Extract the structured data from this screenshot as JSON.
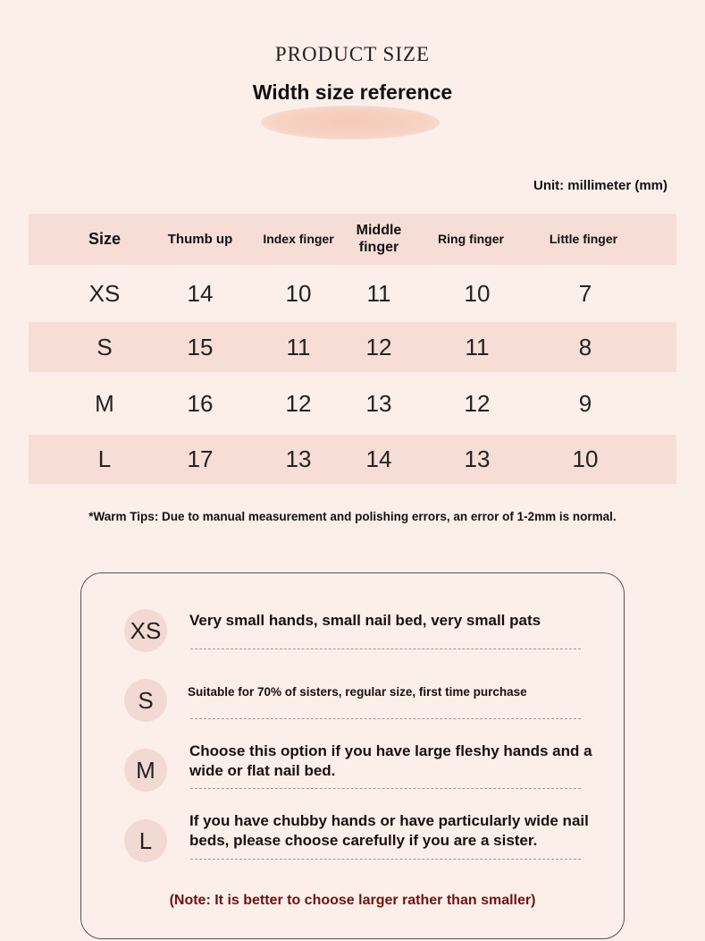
{
  "title": "PRODUCT SIZE",
  "subtitle": "Width size reference",
  "unit": "Unit: millimeter (mm)",
  "table": {
    "headers": [
      "Size",
      "Thumb up",
      "Index finger",
      "Middle finger",
      "Ring finger",
      "Little finger"
    ],
    "rows": [
      [
        "XS",
        "14",
        "10",
        "11",
        "10",
        "7"
      ],
      [
        "S",
        "15",
        "11",
        "12",
        "11",
        "8"
      ],
      [
        "M",
        "16",
        "12",
        "13",
        "12",
        "9"
      ],
      [
        "L",
        "17",
        "13",
        "14",
        "13",
        "10"
      ]
    ]
  },
  "tips": "*Warm Tips: Due to manual measurement and polishing errors, an error of 1-2mm is normal.",
  "guide": [
    {
      "size": "XS",
      "text": "Very small hands, small nail bed, very small pats"
    },
    {
      "size": "S",
      "text": "Suitable for 70% of sisters, regular size, first time purchase"
    },
    {
      "size": "M",
      "text": "Choose this option if you have large fleshy hands and a wide or flat nail bed."
    },
    {
      "size": "L",
      "text": "If you have chubby hands or have particularly wide nail beds, please choose carefully if you are a sister."
    }
  ],
  "note": "(Note: It is better to choose larger rather than smaller)",
  "colors": {
    "background": "#fcefea",
    "stripe": "#f6ddd5",
    "circle": "#f2dad3",
    "note": "#6b1414"
  }
}
